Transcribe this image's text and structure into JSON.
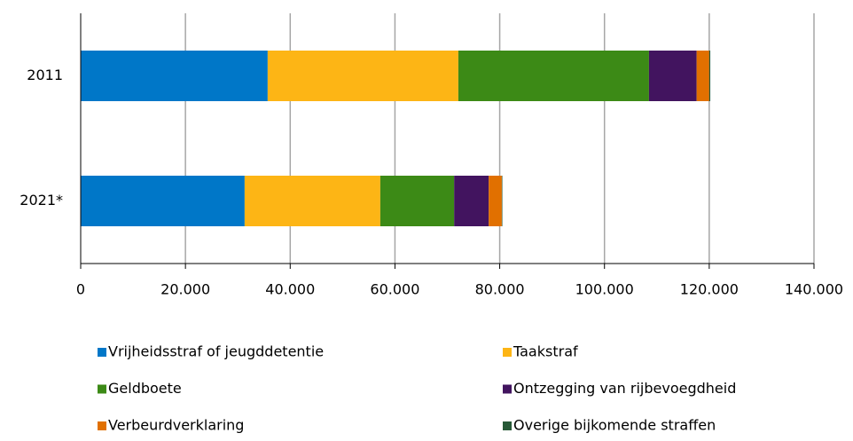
{
  "chart_data": {
    "type": "stacked-bar-horizontal",
    "categories": [
      "2011",
      "2021*"
    ],
    "series": [
      {
        "name": "Vrijheidsstraf of jeugddetentie",
        "color": "#0077c8",
        "values": [
          35700,
          31300
        ]
      },
      {
        "name": "Taakstraf",
        "color": "#fdb515",
        "values": [
          36400,
          25900
        ]
      },
      {
        "name": "Geldboete",
        "color": "#3c8a16",
        "values": [
          36400,
          14100
        ]
      },
      {
        "name": "Ontzegging van rijbevoegdheid",
        "color": "#42145f",
        "values": [
          9100,
          6600
        ]
      },
      {
        "name": "Verbeurdverklaring",
        "color": "#e17000",
        "values": [
          2400,
          2500
        ]
      },
      {
        "name": "Overige bijkomende straffen",
        "color": "#275937",
        "values": [
          200,
          100
        ]
      }
    ],
    "xlim": [
      0,
      140000
    ],
    "xticks": [
      0,
      {
        "value": 20000,
        "label": "20.000"
      },
      {
        "value": 40000,
        "label": "40.000"
      },
      {
        "value": 60000,
        "label": "60.000"
      },
      {
        "value": 80000,
        "label": "80.000"
      },
      {
        "value": 100000,
        "label": "100.000"
      },
      {
        "value": 120000,
        "label": "120.000"
      },
      {
        "value": 140000,
        "label": "140.000"
      }
    ],
    "grid": true
  }
}
